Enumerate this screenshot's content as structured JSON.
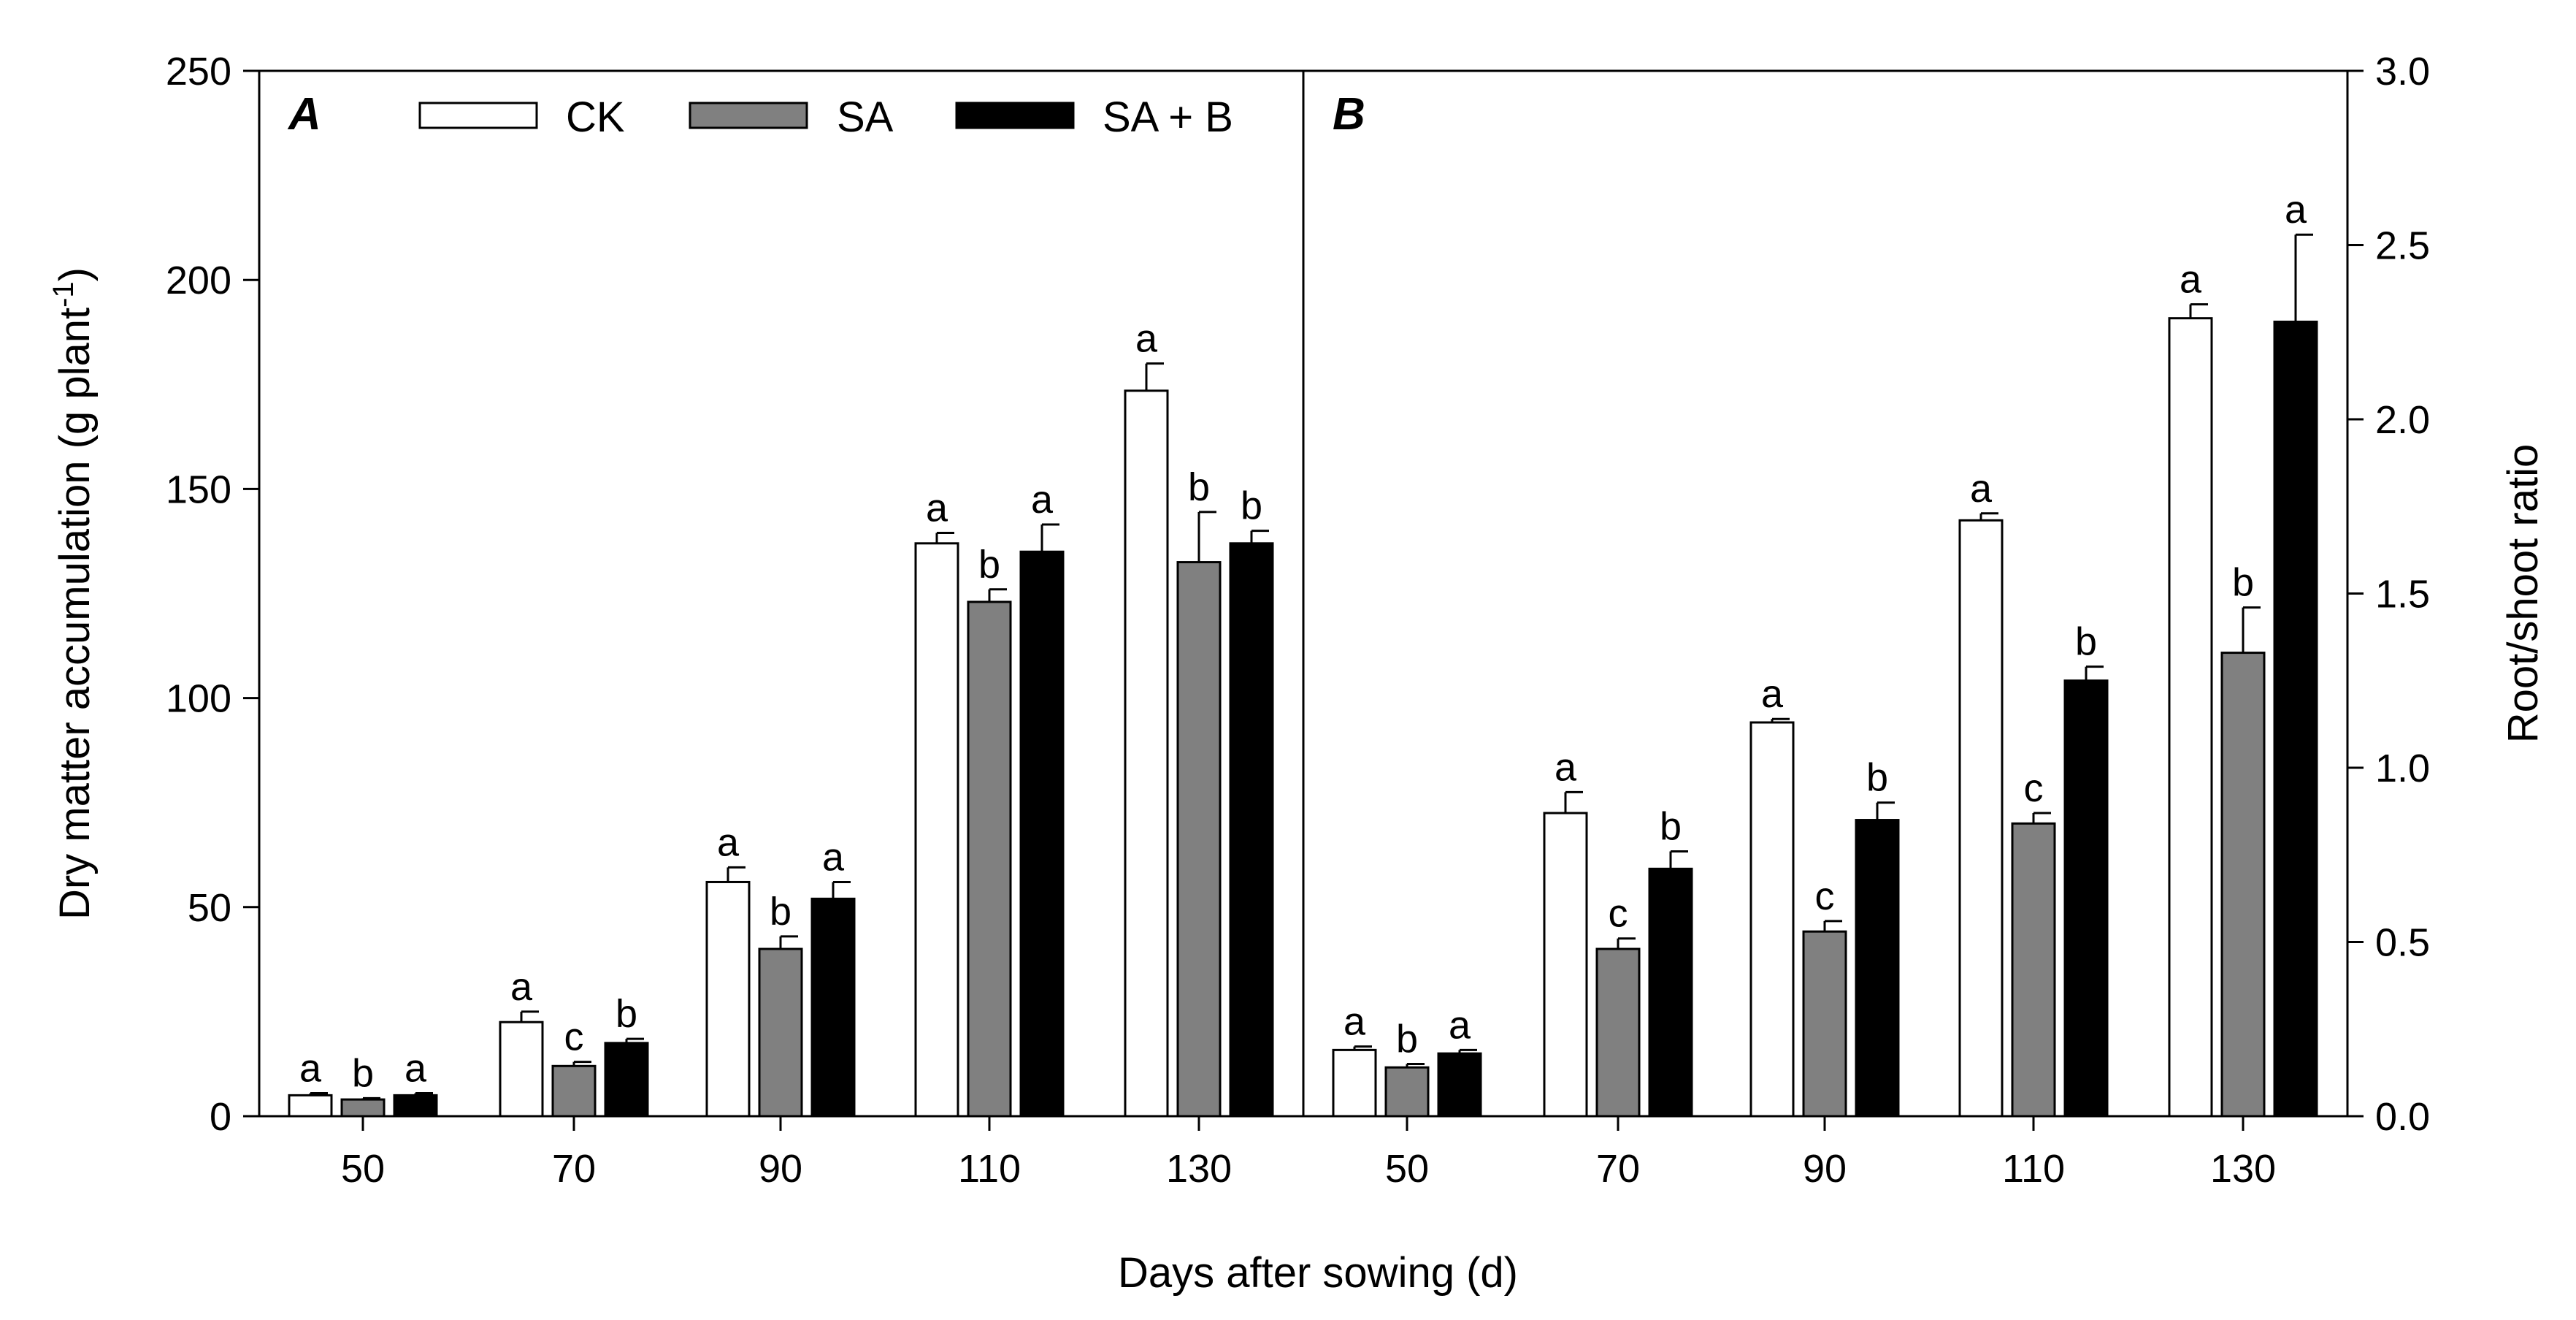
{
  "chart_data": [
    {
      "type": "bar",
      "panel_label": "A",
      "categories": [
        "50",
        "70",
        "90",
        "110",
        "130"
      ],
      "series": [
        {
          "name": "CK",
          "color": "#ffffff",
          "values": [
            5,
            22.5,
            56,
            137,
            173.5
          ],
          "errors": [
            0.5,
            2.5,
            3.5,
            2.5,
            6.5
          ],
          "labels": [
            "a",
            "a",
            "a",
            "a",
            "a"
          ]
        },
        {
          "name": "SA",
          "color": "#808080",
          "values": [
            4,
            12,
            40,
            123,
            132.5
          ],
          "errors": [
            0.3,
            1,
            3,
            3,
            12
          ],
          "labels": [
            "b",
            "c",
            "b",
            "b",
            "b"
          ]
        },
        {
          "name": "SA + B",
          "color": "#000000",
          "values": [
            5,
            17.5,
            52,
            135,
            137
          ],
          "errors": [
            0.5,
            1,
            4,
            6.5,
            3
          ],
          "labels": [
            "a",
            "b",
            "a",
            "a",
            "b"
          ]
        }
      ],
      "ylabel_main": "Dry matter accumulation (g plant",
      "ylabel_sup": "-1",
      "ylabel_end": ")",
      "ylim": [
        0,
        250
      ],
      "yticks": [
        "0",
        "50",
        "100",
        "150",
        "200",
        "250"
      ],
      "legend_position": "top"
    },
    {
      "type": "bar",
      "panel_label": "B",
      "categories": [
        "50",
        "70",
        "90",
        "110",
        "130"
      ],
      "series": [
        {
          "name": "CK",
          "color": "#ffffff",
          "values": [
            0.19,
            0.87,
            1.13,
            1.71,
            2.29
          ],
          "errors": [
            0.01,
            0.06,
            0.01,
            0.02,
            0.04
          ],
          "labels": [
            "a",
            "a",
            "a",
            "a",
            "a"
          ]
        },
        {
          "name": "SA",
          "color": "#808080",
          "values": [
            0.14,
            0.48,
            0.53,
            0.84,
            1.33
          ],
          "errors": [
            0.01,
            0.03,
            0.03,
            0.03,
            0.13
          ],
          "labels": [
            "b",
            "c",
            "c",
            "c",
            "b"
          ]
        },
        {
          "name": "SA + B",
          "color": "#000000",
          "values": [
            0.18,
            0.71,
            0.85,
            1.25,
            2.28
          ],
          "errors": [
            0.01,
            0.05,
            0.05,
            0.04,
            0.25
          ],
          "labels": [
            "a",
            "b",
            "b",
            "b",
            "a"
          ]
        }
      ],
      "ylabel": "Root/shoot ratio",
      "ylim": [
        0,
        3.0
      ],
      "yticks": [
        "0.0",
        "0.5",
        "1.0",
        "1.5",
        "2.0",
        "2.5",
        "3.0"
      ],
      "y_axis_side": "right"
    }
  ],
  "xlabel": "Days after sowing (d)",
  "legend": [
    {
      "name": "CK",
      "color": "#ffffff"
    },
    {
      "name": "SA",
      "color": "#808080"
    },
    {
      "name": "SA + B",
      "color": "#000000"
    }
  ]
}
